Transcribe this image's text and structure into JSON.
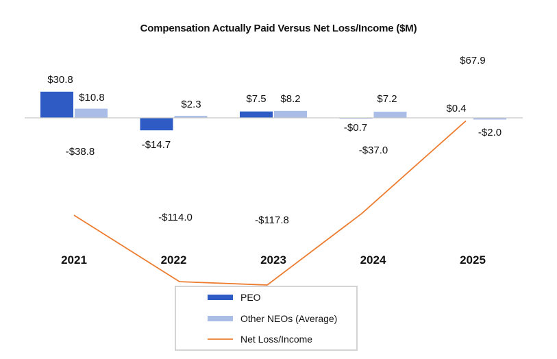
{
  "chart_data": {
    "type": "bar",
    "title": "Compensation Actually Paid Versus Net Loss/Income ($M)",
    "categories": [
      "2021",
      "2022",
      "2023",
      "2024",
      "2025"
    ],
    "series": [
      {
        "name": "PEO",
        "type": "bar",
        "color": "#2f5bc4",
        "values": [
          30.8,
          -14.7,
          7.5,
          -0.7,
          0.4
        ],
        "labels": [
          "$30.8",
          "-$14.7",
          "$7.5",
          "-$0.7",
          "$0.4"
        ]
      },
      {
        "name": "Other NEOs (Average)",
        "type": "bar",
        "color": "#a9bde6",
        "values": [
          10.8,
          2.3,
          8.2,
          7.2,
          -2.0
        ],
        "labels": [
          "$10.8",
          "$2.3",
          "$8.2",
          "$7.2",
          "-$2.0"
        ]
      },
      {
        "name": "Net Loss/Income",
        "type": "line",
        "color": "#ed7d31",
        "values": [
          -38.8,
          -114.0,
          -117.8,
          -37.0,
          67.9
        ],
        "labels": [
          "-$38.8",
          "-$114.0",
          "-$117.8",
          "-$37.0",
          "$67.9"
        ]
      }
    ],
    "legend_position": "bottom",
    "grid": false
  }
}
